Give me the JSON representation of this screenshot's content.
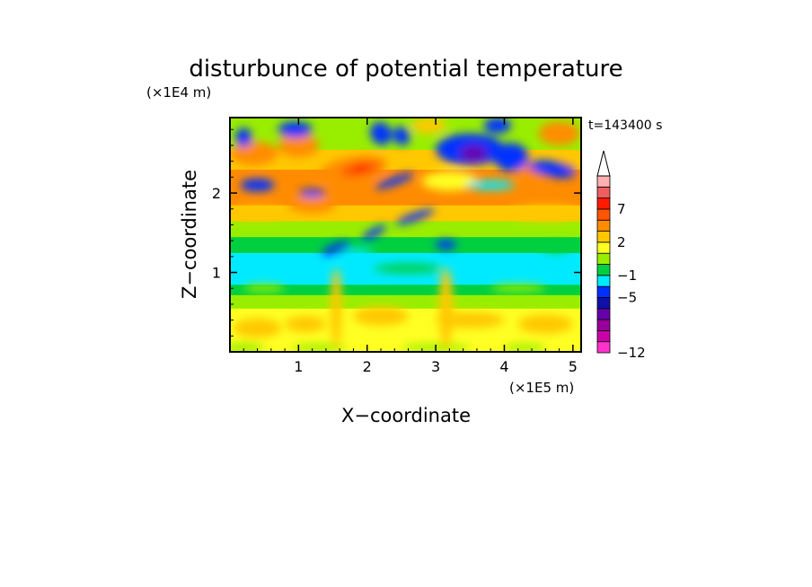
{
  "chart_data": {
    "type": "heatmap",
    "title": "disturbunce of potential temperature",
    "xlabel": "X−coordinate",
    "ylabel": "Z−coordinate",
    "x_unit": "(×1E5 m)",
    "y_unit": "(×1E4 m)",
    "time_label": "t=143400 s",
    "xlim": [
      0,
      5.12
    ],
    "ylim": [
      0,
      2.95
    ],
    "x_ticks": [
      1,
      2,
      3,
      4,
      5
    ],
    "x_tick_labels": [
      "1",
      "2",
      "3",
      "4",
      "5"
    ],
    "y_ticks": [
      1,
      2
    ],
    "y_tick_labels": [
      "1",
      "2"
    ],
    "colorbar": {
      "colors": [
        "#ff33cc",
        "#cc00aa",
        "#990099",
        "#6600aa",
        "#1010aa",
        "#0030ff",
        "#00eaff",
        "#00d040",
        "#99ee00",
        "#ffff22",
        "#ffc800",
        "#ff8c00",
        "#ff5500",
        "#ff1a00",
        "#ee6060",
        "#ffb0b0"
      ],
      "labels": [
        {
          "text": "−12",
          "index": 0
        },
        {
          "text": "−5",
          "index": 5
        },
        {
          "text": "−1",
          "index": 7
        },
        {
          "text": "2",
          "index": 10
        },
        {
          "text": "7",
          "index": 13
        }
      ],
      "extend_top": true
    },
    "regions": [
      {
        "z": [
          0.0,
          0.55
        ],
        "value": 1.4,
        "note": "yellow near surface with orange patches"
      },
      {
        "z": [
          0.55,
          0.72
        ],
        "value": 0.4,
        "note": "green band"
      },
      {
        "z": [
          0.72,
          1.25
        ],
        "value": -0.5,
        "note": "cyan band"
      },
      {
        "z": [
          1.25,
          1.65
        ],
        "value": 0.4,
        "note": "green band with blue patches"
      },
      {
        "z": [
          1.65,
          2.3
        ],
        "value": 2.5,
        "note": "orange/red maximum near x=1.5-2.3"
      },
      {
        "z": [
          2.3,
          2.95
        ],
        "value": -1.5,
        "note": "mixed blue and orange cells"
      }
    ]
  }
}
